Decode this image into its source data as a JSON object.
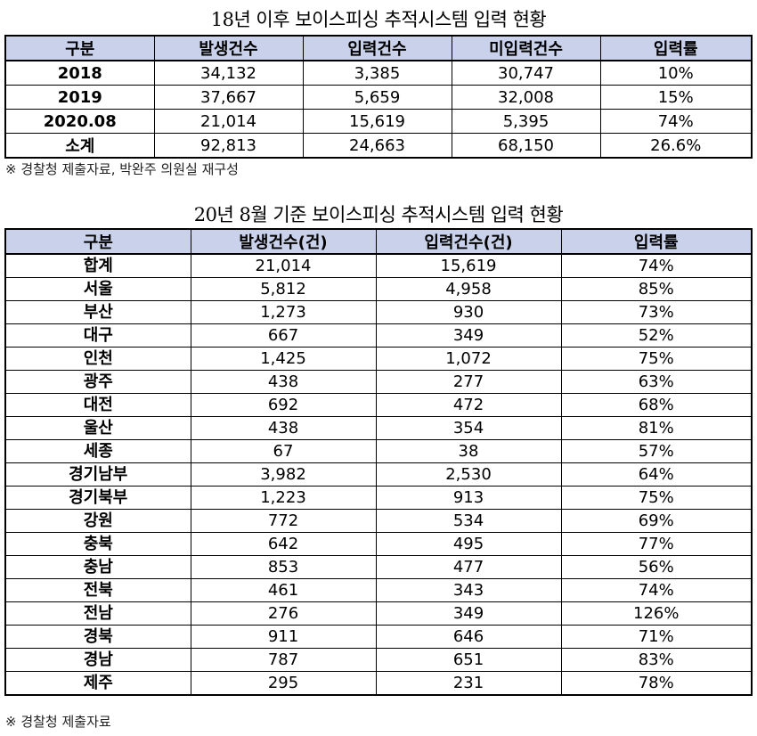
{
  "table1": {
    "title": "18년 이후 보이스피싱 추적시스템 입력 현황",
    "headers": [
      "구분",
      "발생건수",
      "입력건수",
      "미입력건수",
      "입력률"
    ],
    "rows": [
      [
        "2018",
        "34,132",
        "3,385",
        "30,747",
        "10%"
      ],
      [
        "2019",
        "37,667",
        "5,659",
        "32,008",
        "15%"
      ],
      [
        "2020.08",
        "21,014",
        "15,619",
        "5,395",
        "74%"
      ],
      [
        "소계",
        "92,813",
        "24,663",
        "68,150",
        "26.6%"
      ]
    ],
    "note": "※ 경찰청 제출자료, 박완주 의원실 재구성"
  },
  "table2": {
    "title": "20년 8월 기준 보이스피싱 추적시스템 입력 현황",
    "headers": [
      "구분",
      "발생건수(건)",
      "입력건수(건)",
      "입력률"
    ],
    "rows": [
      [
        "합계",
        "21,014",
        "15,619",
        "74%"
      ],
      [
        "서울",
        "5,812",
        "4,958",
        "85%"
      ],
      [
        "부산",
        "1,273",
        "930",
        "73%"
      ],
      [
        "대구",
        "667",
        "349",
        "52%"
      ],
      [
        "인천",
        "1,425",
        "1,072",
        "75%"
      ],
      [
        "광주",
        "438",
        "277",
        "63%"
      ],
      [
        "대전",
        "692",
        "472",
        "68%"
      ],
      [
        "울산",
        "438",
        "354",
        "81%"
      ],
      [
        "세종",
        "67",
        "38",
        "57%"
      ],
      [
        "경기남부",
        "3,982",
        "2,530",
        "64%"
      ],
      [
        "경기북부",
        "1,223",
        "913",
        "75%"
      ],
      [
        "강원",
        "772",
        "534",
        "69%"
      ],
      [
        "충북",
        "642",
        "495",
        "77%"
      ],
      [
        "충남",
        "853",
        "477",
        "56%"
      ],
      [
        "전북",
        "461",
        "343",
        "74%"
      ],
      [
        "전남",
        "276",
        "349",
        "126%"
      ],
      [
        "경북",
        "911",
        "646",
        "71%"
      ],
      [
        "경남",
        "787",
        "651",
        "83%"
      ],
      [
        "제주",
        "295",
        "231",
        "78%"
      ]
    ],
    "note": "※ 경찰청 제출자료"
  },
  "colors": {
    "header_bg": "#c9d2ea",
    "border": "#000000"
  }
}
